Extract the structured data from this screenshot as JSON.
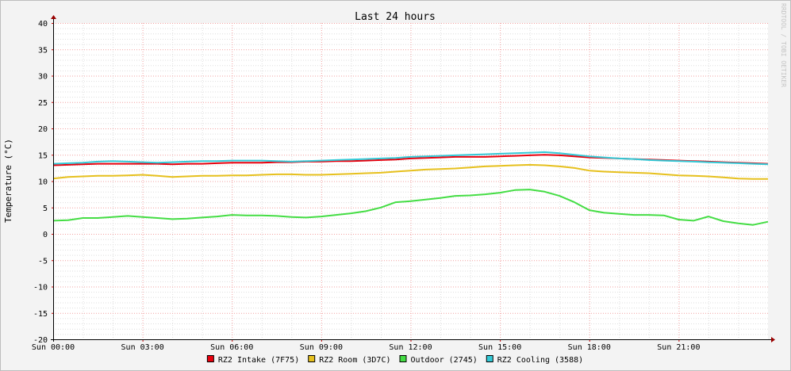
{
  "chart_data": {
    "type": "line",
    "title": "Last 24 hours",
    "ylabel": "Temperature (°C)",
    "xlabel": "",
    "watermark": "RRDTOOL / TOBI OETIKER",
    "xlim": [
      0,
      24
    ],
    "ylim": [
      -20,
      40
    ],
    "grid": true,
    "legend_position": "bottom-center",
    "y_ticks": [
      "-20",
      "-15",
      "-10",
      "-5",
      "0",
      "5",
      "10",
      "15",
      "20",
      "25",
      "30",
      "35",
      "40"
    ],
    "x_ticks": [
      {
        "label": "Sun 00:00",
        "hour": 0
      },
      {
        "label": "Sun 03:00",
        "hour": 3
      },
      {
        "label": "Sun 06:00",
        "hour": 6
      },
      {
        "label": "Sun 09:00",
        "hour": 9
      },
      {
        "label": "Sun 12:00",
        "hour": 12
      },
      {
        "label": "Sun 15:00",
        "hour": 15
      },
      {
        "label": "Sun 18:00",
        "hour": 18
      },
      {
        "label": "Sun 21:00",
        "hour": 21
      }
    ],
    "x": [
      0,
      0.5,
      1,
      1.5,
      2,
      2.5,
      3,
      3.5,
      4,
      4.5,
      5,
      5.5,
      6,
      6.5,
      7,
      7.5,
      8,
      8.5,
      9,
      9.5,
      10,
      10.5,
      11,
      11.5,
      12,
      12.5,
      13,
      13.5,
      14,
      14.5,
      15,
      15.5,
      16,
      16.5,
      17,
      17.5,
      18,
      18.5,
      19,
      19.5,
      20,
      20.5,
      21,
      21.5,
      22,
      22.5,
      23,
      23.5,
      24
    ],
    "series": [
      {
        "name": "RZ2 Intake (7F75)",
        "color": "#e8000d",
        "values": [
          13.0,
          13.1,
          13.2,
          13.3,
          13.3,
          13.3,
          13.3,
          13.3,
          13.2,
          13.3,
          13.3,
          13.4,
          13.5,
          13.5,
          13.5,
          13.6,
          13.6,
          13.7,
          13.7,
          13.8,
          13.8,
          13.9,
          14.0,
          14.1,
          14.3,
          14.4,
          14.5,
          14.6,
          14.6,
          14.6,
          14.7,
          14.8,
          14.9,
          15.0,
          14.9,
          14.7,
          14.5,
          14.4,
          14.3,
          14.2,
          14.1,
          14.0,
          13.9,
          13.8,
          13.7,
          13.6,
          13.5,
          13.4,
          13.3
        ]
      },
      {
        "name": "RZ2 Room (3D7C)",
        "color": "#e6c01d",
        "values": [
          10.5,
          10.8,
          10.9,
          11.0,
          11.0,
          11.1,
          11.2,
          11.0,
          10.8,
          10.9,
          11.0,
          11.0,
          11.1,
          11.1,
          11.2,
          11.3,
          11.3,
          11.2,
          11.2,
          11.3,
          11.4,
          11.5,
          11.6,
          11.8,
          12.0,
          12.2,
          12.3,
          12.4,
          12.6,
          12.8,
          12.9,
          13.0,
          13.1,
          13.0,
          12.8,
          12.5,
          12.0,
          11.8,
          11.7,
          11.6,
          11.5,
          11.3,
          11.1,
          11.0,
          10.9,
          10.7,
          10.5,
          10.4,
          10.4
        ]
      },
      {
        "name": "Outdoor (2745)",
        "color": "#44dd44",
        "values": [
          2.5,
          2.6,
          3.0,
          3.0,
          3.2,
          3.4,
          3.2,
          3.0,
          2.8,
          2.9,
          3.1,
          3.3,
          3.6,
          3.5,
          3.5,
          3.4,
          3.2,
          3.1,
          3.3,
          3.6,
          3.9,
          4.3,
          5.0,
          6.0,
          6.2,
          6.5,
          6.8,
          7.2,
          7.3,
          7.5,
          7.8,
          8.3,
          8.4,
          8.0,
          7.2,
          6.0,
          4.5,
          4.0,
          3.8,
          3.6,
          3.6,
          3.5,
          2.7,
          2.5,
          3.3,
          2.4,
          2.0,
          1.7,
          2.3
        ]
      },
      {
        "name": "RZ2 Cooling (3588)",
        "color": "#33c9d6",
        "values": [
          13.3,
          13.4,
          13.5,
          13.7,
          13.8,
          13.7,
          13.6,
          13.5,
          13.6,
          13.7,
          13.8,
          13.8,
          13.9,
          13.9,
          13.9,
          13.8,
          13.7,
          13.8,
          13.9,
          14.0,
          14.1,
          14.2,
          14.3,
          14.4,
          14.6,
          14.7,
          14.8,
          14.9,
          15.0,
          15.1,
          15.2,
          15.3,
          15.4,
          15.5,
          15.3,
          15.0,
          14.7,
          14.5,
          14.3,
          14.2,
          14.0,
          13.9,
          13.8,
          13.7,
          13.6,
          13.5,
          13.4,
          13.3,
          13.2
        ]
      }
    ]
  }
}
